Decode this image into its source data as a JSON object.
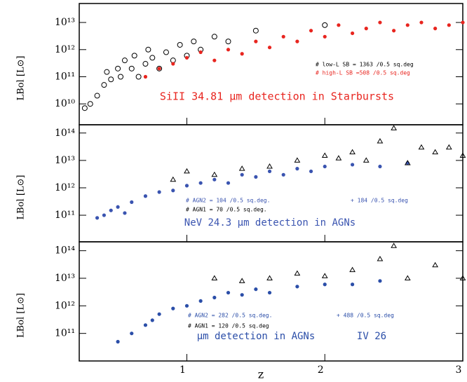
{
  "chart_data": [
    {
      "type": "scatter",
      "log_y": true,
      "ylabel": "LBol [L⊙]",
      "xlim": [
        0.22,
        3.0
      ],
      "ylim": [
        1700000000.0,
        50000000000000.0
      ],
      "yticks": [
        {
          "value": 10000000000.0,
          "label": "10¹⁰"
        },
        {
          "value": 100000000000.0,
          "label": "10¹¹"
        },
        {
          "value": 1000000000000.0,
          "label": "10¹²"
        },
        {
          "value": 10000000000000.0,
          "label": "10¹³"
        }
      ],
      "annotations": [
        "SiII 34.81 μm detection in Starbursts"
      ],
      "series": [
        {
          "name": "# low-L SB = 1363 /0.5 sq.deg",
          "color": "#000000",
          "marker": "open-circle",
          "x": [
            0.26,
            0.3,
            0.35,
            0.4,
            0.42,
            0.45,
            0.5,
            0.52,
            0.55,
            0.6,
            0.62,
            0.65,
            0.7,
            0.72,
            0.75,
            0.8,
            0.85,
            0.9,
            0.95,
            1.0,
            1.05,
            1.1,
            1.2,
            1.3,
            1.5,
            2.0
          ],
          "values": [
            7000000000.0,
            10000000000.0,
            20000000000.0,
            50000000000.0,
            150000000000.0,
            80000000000.0,
            200000000000.0,
            100000000000.0,
            400000000000.0,
            200000000000.0,
            600000000000.0,
            100000000000.0,
            300000000000.0,
            1000000000000.0,
            500000000000.0,
            200000000000.0,
            800000000000.0,
            400000000000.0,
            1500000000000.0,
            600000000000.0,
            2000000000000.0,
            1000000000000.0,
            3000000000000.0,
            2000000000000.0,
            5000000000000.0,
            8000000000000.0
          ]
        },
        {
          "name": "# high-L SB =508 /0.5 sq.deg",
          "color": "#e8251f",
          "marker": "filled-circle",
          "x": [
            0.7,
            0.8,
            0.9,
            1.0,
            1.1,
            1.2,
            1.3,
            1.4,
            1.5,
            1.6,
            1.7,
            1.8,
            1.9,
            2.0,
            2.1,
            2.2,
            2.3,
            2.4,
            2.5,
            2.6,
            2.7,
            2.8,
            2.9,
            3.0
          ],
          "values": [
            100000000000.0,
            200000000000.0,
            300000000000.0,
            500000000000.0,
            800000000000.0,
            400000000000.0,
            1000000000000.0,
            700000000000.0,
            2000000000000.0,
            1200000000000.0,
            3000000000000.0,
            2000000000000.0,
            5000000000000.0,
            3000000000000.0,
            8000000000000.0,
            4000000000000.0,
            6000000000000.0,
            10000000000000.0,
            5000000000000.0,
            8000000000000.0,
            10000000000000.0,
            6000000000000.0,
            8000000000000.0,
            10000000000000.0
          ]
        }
      ]
    },
    {
      "type": "scatter",
      "log_y": true,
      "ylabel": "LBol [L⊙]",
      "xlim": [
        0.22,
        3.0
      ],
      "ylim": [
        10700000000.0,
        200000000000000.0
      ],
      "yticks": [
        {
          "value": 100000000000.0,
          "label": "10¹¹"
        },
        {
          "value": 1000000000000.0,
          "label": "10¹²"
        },
        {
          "value": 10000000000000.0,
          "label": "10¹³"
        },
        {
          "value": 100000000000000.0,
          "label": "10¹⁴"
        }
      ],
      "annotations": [
        "+ 184 /0.5 sq.deg",
        "NeV 24.3 μm detection in AGNs"
      ],
      "series": [
        {
          "name": "# AGN2 = 104 /0.5 sq.deg.",
          "color": "#3a54b0",
          "marker": "filled-circle",
          "x": [
            0.35,
            0.4,
            0.45,
            0.5,
            0.55,
            0.6,
            0.7,
            0.8,
            0.9,
            1.0,
            1.1,
            1.2,
            1.3,
            1.4,
            1.5,
            1.6,
            1.7,
            1.8,
            1.9,
            2.0,
            2.2,
            2.4,
            2.6
          ],
          "values": [
            80000000000.0,
            100000000000.0,
            150000000000.0,
            200000000000.0,
            120000000000.0,
            300000000000.0,
            500000000000.0,
            700000000000.0,
            800000000000.0,
            1200000000000.0,
            1500000000000.0,
            2000000000000.0,
            1500000000000.0,
            3000000000000.0,
            2500000000000.0,
            4000000000000.0,
            3000000000000.0,
            5000000000000.0,
            4000000000000.0,
            6000000000000.0,
            7000000000000.0,
            6000000000000.0,
            8000000000000.0
          ]
        },
        {
          "name": "# AGN1 = 70 /0.5 sq.deg.",
          "color": "#000000",
          "marker": "open-triangle",
          "x": [
            0.9,
            1.0,
            1.2,
            1.4,
            1.6,
            1.8,
            2.0,
            2.1,
            2.2,
            2.3,
            2.4,
            2.5,
            2.6,
            2.7,
            2.8,
            2.9,
            3.0
          ],
          "values": [
            2000000000000.0,
            4000000000000.0,
            3000000000000.0,
            5000000000000.0,
            6000000000000.0,
            10000000000000.0,
            15000000000000.0,
            12000000000000.0,
            20000000000000.0,
            10000000000000.0,
            50000000000000.0,
            150000000000000.0,
            8000000000000.0,
            30000000000000.0,
            20000000000000.0,
            30000000000000.0,
            15000000000000.0
          ]
        }
      ]
    },
    {
      "type": "scatter",
      "log_y": true,
      "ylabel": "LBol [L⊙]",
      "xlabel": "z",
      "xlim": [
        0.22,
        3.0
      ],
      "ylim": [
        10000000000.0,
        210000000000000.0
      ],
      "xticks": [
        1,
        2,
        3
      ],
      "yticks": [
        {
          "value": 100000000000.0,
          "label": "10¹¹"
        },
        {
          "value": 1000000000000.0,
          "label": "10¹²"
        },
        {
          "value": 10000000000000.0,
          "label": "10¹³"
        },
        {
          "value": 100000000000000.0,
          "label": "10¹⁴"
        }
      ],
      "annotations": [
        "+ 488 /0.5 sq.deg",
        "μm detection in AGNs",
        "IV 26"
      ],
      "series": [
        {
          "name": "# AGN2 = 282 /0.5 sq.deg.",
          "color": "#2b4ea8",
          "marker": "filled-circle",
          "x": [
            0.5,
            0.6,
            0.7,
            0.75,
            0.8,
            0.9,
            1.0,
            1.1,
            1.2,
            1.3,
            1.4,
            1.5,
            1.6,
            1.8,
            2.0,
            2.2,
            2.4
          ],
          "values": [
            50000000000.0,
            100000000000.0,
            200000000000.0,
            300000000000.0,
            500000000000.0,
            800000000000.0,
            1000000000000.0,
            1500000000000.0,
            2000000000000.0,
            3000000000000.0,
            2500000000000.0,
            4000000000000.0,
            3000000000000.0,
            5000000000000.0,
            6000000000000.0,
            6000000000000.0,
            8000000000000.0
          ]
        },
        {
          "name": "# AGN1 = 120 /0.5 sq.deg",
          "color": "#000000",
          "marker": "open-triangle",
          "x": [
            1.2,
            1.4,
            1.6,
            1.8,
            2.0,
            2.2,
            2.4,
            2.5,
            2.6,
            2.8,
            3.0
          ],
          "values": [
            10000000000000.0,
            8000000000000.0,
            10000000000000.0,
            15000000000000.0,
            12000000000000.0,
            20000000000000.0,
            50000000000000.0,
            150000000000000.0,
            10000000000000.0,
            30000000000000.0,
            10000000000000.0
          ]
        }
      ]
    }
  ]
}
